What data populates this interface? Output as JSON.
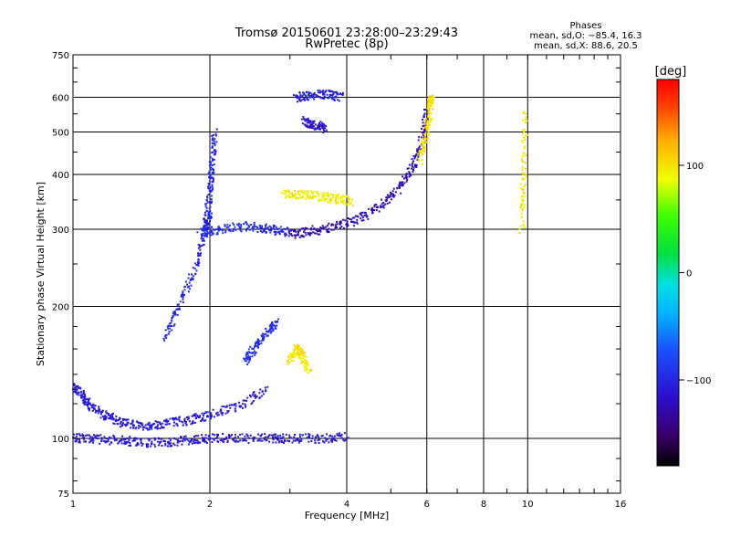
{
  "chart_data": {
    "type": "scatter",
    "title": "Tromsø 20150601 23:28:00–23:29:43",
    "subtitle": "RwPretec (8p)",
    "xlabel": "Frequency [MHz]",
    "ylabel": "Stationary phase Virtual Height [km]",
    "x_scale": "log",
    "y_scale": "log",
    "xlim": [
      1,
      16
    ],
    "ylim": [
      75,
      750
    ],
    "grid": true,
    "x_ticks": [
      1,
      2,
      4,
      6,
      8,
      10,
      16
    ],
    "x_tick_labels": [
      "1",
      "2",
      "4",
      "6",
      "8",
      "10",
      "16"
    ],
    "y_ticks": [
      75,
      100,
      200,
      300,
      400,
      500,
      600,
      750
    ],
    "y_tick_labels": [
      "75",
      "100",
      "200",
      "300",
      "400",
      "500",
      "600",
      "750"
    ],
    "stats": {
      "heading": "Phases",
      "line_o": "mean, sd,O: −85.4, 16.3",
      "line_x": "mean, sd,X: 88.6, 20.5"
    },
    "colorbar": {
      "label": "[deg]",
      "range": [
        -180,
        180
      ],
      "ticks": [
        100,
        0,
        -100
      ],
      "tick_labels": [
        "100",
        "0",
        "−100"
      ]
    },
    "traces": [
      {
        "x": [
          1.0,
          1.05,
          1.1,
          1.2,
          1.3,
          1.45,
          1.6,
          1.8,
          2.0,
          2.3,
          2.7
        ],
        "y": [
          132,
          125,
          118,
          112,
          108,
          107,
          108,
          110,
          113,
          118,
          130
        ],
        "phase": -110
      },
      {
        "x": [
          1.0,
          1.1,
          1.25,
          1.4,
          1.6,
          1.8,
          2.0,
          2.3,
          2.7,
          3.0,
          3.5,
          4.0
        ],
        "y": [
          100,
          100,
          99,
          98,
          98,
          99,
          100,
          100,
          100,
          100,
          100,
          101
        ],
        "phase": -112
      },
      {
        "x": [
          1.6,
          1.7,
          1.85,
          1.95,
          2.0
        ],
        "y": [
          170,
          200,
          240,
          290,
          330
        ],
        "phase": -100
      },
      {
        "x": [
          1.95,
          2.0,
          2.02,
          2.05
        ],
        "y": [
          300,
          360,
          420,
          500
        ],
        "phase": -100
      },
      {
        "x": [
          1.9,
          2.1,
          2.4,
          2.7,
          3.0
        ],
        "y": [
          295,
          300,
          305,
          300,
          295
        ],
        "phase": -95
      },
      {
        "x": [
          3.0,
          3.3,
          3.7,
          4.2,
          4.7,
          5.2,
          5.6,
          5.9,
          6.0
        ],
        "y": [
          292,
          296,
          303,
          315,
          335,
          370,
          420,
          490,
          560
        ],
        "phase": -125
      },
      {
        "x": [
          2.9,
          3.2,
          3.5,
          3.8,
          4.1
        ],
        "y": [
          360,
          360,
          356,
          352,
          348
        ],
        "phase": 95
      },
      {
        "x": [
          5.8,
          6.0,
          6.1,
          6.15
        ],
        "y": [
          430,
          500,
          560,
          610
        ],
        "phase": 100
      },
      {
        "x": [
          3.1,
          3.3,
          3.6,
          3.9
        ],
        "y": [
          600,
          605,
          610,
          600
        ],
        "phase": -105
      },
      {
        "x": [
          3.2,
          3.4,
          3.6
        ],
        "y": [
          530,
          520,
          510
        ],
        "phase": -115
      },
      {
        "x": [
          3.0,
          3.1,
          3.2,
          3.3
        ],
        "y": [
          150,
          160,
          155,
          140
        ],
        "phase": 100
      },
      {
        "x": [
          2.4,
          2.5,
          2.7,
          2.8
        ],
        "y": [
          150,
          160,
          175,
          185
        ],
        "phase": -95
      },
      {
        "x": [
          9.7,
          9.8,
          9.9
        ],
        "y": [
          300,
          400,
          560
        ],
        "phase": 95
      }
    ]
  }
}
